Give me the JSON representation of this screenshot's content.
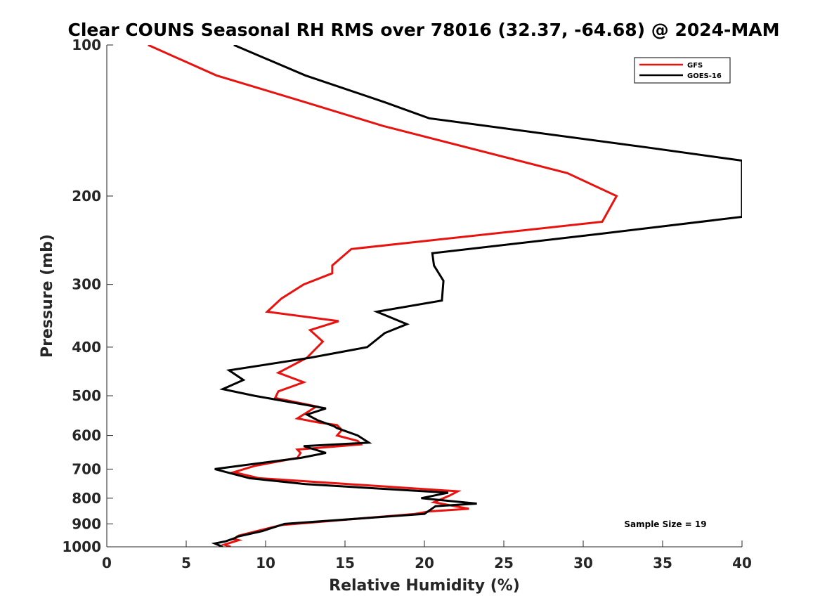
{
  "chart_data": {
    "type": "line",
    "title": "Clear COUNS Seasonal RH RMS over 78016 (32.37, -64.68) @ 2024-MAM",
    "xlabel": "Relative Humidity (%)",
    "ylabel": "Pressure (mb)",
    "xlim": [
      0,
      40
    ],
    "ylim": [
      100,
      1000
    ],
    "yscale": "log",
    "y_reversed": true,
    "x_ticks": [
      0,
      5,
      10,
      15,
      20,
      25,
      30,
      35,
      40
    ],
    "y_ticks": [
      100,
      200,
      300,
      400,
      500,
      600,
      700,
      800,
      900,
      1000
    ],
    "grid": false,
    "legend_position": "top-right",
    "annotation": "Sample Size = 19",
    "series": [
      {
        "name": "GFS",
        "color": "#e8120f",
        "x": [
          2.6,
          6.9,
          12.5,
          17.4,
          29.0,
          32.1,
          31.2,
          15.4,
          14.2,
          14.2,
          12.4,
          11.0,
          10.1,
          14.6,
          12.8,
          13.6,
          12.6,
          10.8,
          12.4,
          10.8,
          10.6,
          13.2,
          12.8,
          12.0,
          13.3,
          14.5,
          14.8,
          14.5,
          15.8,
          16.0,
          12.0,
          12.2,
          12.0,
          9.3,
          8.0,
          9.6,
          22.1,
          21.6,
          20.6,
          22.8,
          20.3,
          19.4,
          11.0,
          8.3,
          8.0,
          8.3,
          7.4,
          7.8
        ],
        "y": [
          100,
          115,
          130,
          145,
          180,
          200,
          225,
          255,
          275,
          285,
          300,
          320,
          340,
          355,
          370,
          390,
          420,
          450,
          470,
          490,
          505,
          525,
          535,
          555,
          565,
          572,
          585,
          600,
          615,
          625,
          640,
          650,
          665,
          690,
          710,
          730,
          775,
          790,
          815,
          840,
          850,
          860,
          905,
          950,
          965,
          970,
          990,
          1000
        ]
      },
      {
        "name": "GOES-16",
        "color": "#000000",
        "x": [
          8.0,
          12.5,
          17.5,
          20.3,
          34.0,
          40.0,
          40.0,
          31.0,
          20.5,
          20.6,
          21.2,
          21.1,
          17.0,
          18.9,
          17.5,
          16.4,
          12.8,
          7.7,
          8.6,
          7.3,
          9.3,
          13.8,
          12.6,
          13.3,
          14.3,
          14.5,
          15.8,
          16.5,
          12.4,
          13.8,
          12.2,
          8.6,
          6.8,
          9.0,
          12.5,
          21.5,
          19.8,
          23.3,
          20.7,
          20.0,
          11.2,
          9.8,
          8.2,
          8.1,
          7.5,
          6.8,
          7.3
        ],
        "y": [
          100,
          115,
          130,
          140,
          160,
          170,
          220,
          238,
          260,
          275,
          295,
          323,
          340,
          360,
          375,
          400,
          420,
          445,
          465,
          485,
          500,
          530,
          545,
          560,
          575,
          580,
          600,
          620,
          630,
          650,
          665,
          688,
          700,
          730,
          750,
          780,
          800,
          820,
          830,
          860,
          900,
          930,
          955,
          960,
          975,
          985,
          1000
        ]
      }
    ]
  }
}
